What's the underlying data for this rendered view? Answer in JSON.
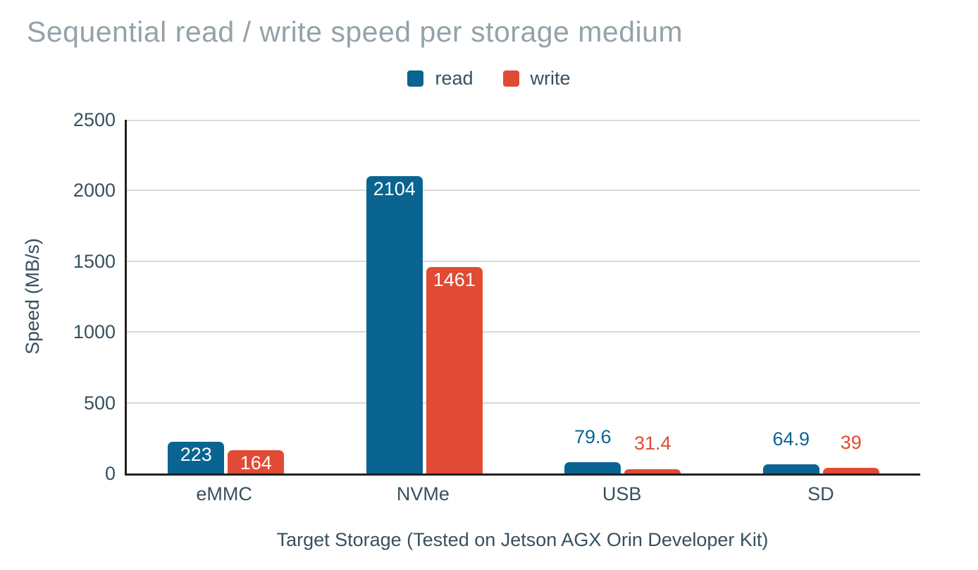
{
  "chart_data": {
    "type": "bar",
    "title": "Sequential read / write speed per storage medium",
    "categories": [
      "eMMC",
      "NVMe",
      "USB",
      "SD"
    ],
    "series": [
      {
        "name": "read",
        "color": "#0a6491",
        "values": [
          223,
          2104,
          79.6,
          64.9
        ],
        "value_labels": [
          "223",
          "2104",
          "79.6",
          "64.9"
        ]
      },
      {
        "name": "write",
        "color": "#e14b35",
        "values": [
          164,
          1461,
          31.4,
          39
        ],
        "value_labels": [
          "164",
          "1461",
          "31.4",
          "39"
        ]
      }
    ],
    "xlabel": "Target Storage (Tested on Jetson AGX Orin Developer Kit)",
    "ylabel": "Speed (MB/s)",
    "ylim": [
      0,
      2500
    ],
    "yticks": [
      0,
      500,
      1000,
      1500,
      2000,
      2500
    ],
    "grid": true,
    "legend_position": "top",
    "colors": {
      "grid": "#d9d9d9",
      "axis": "#212121",
      "title": "#94a2a9",
      "text": "#37505e"
    }
  }
}
